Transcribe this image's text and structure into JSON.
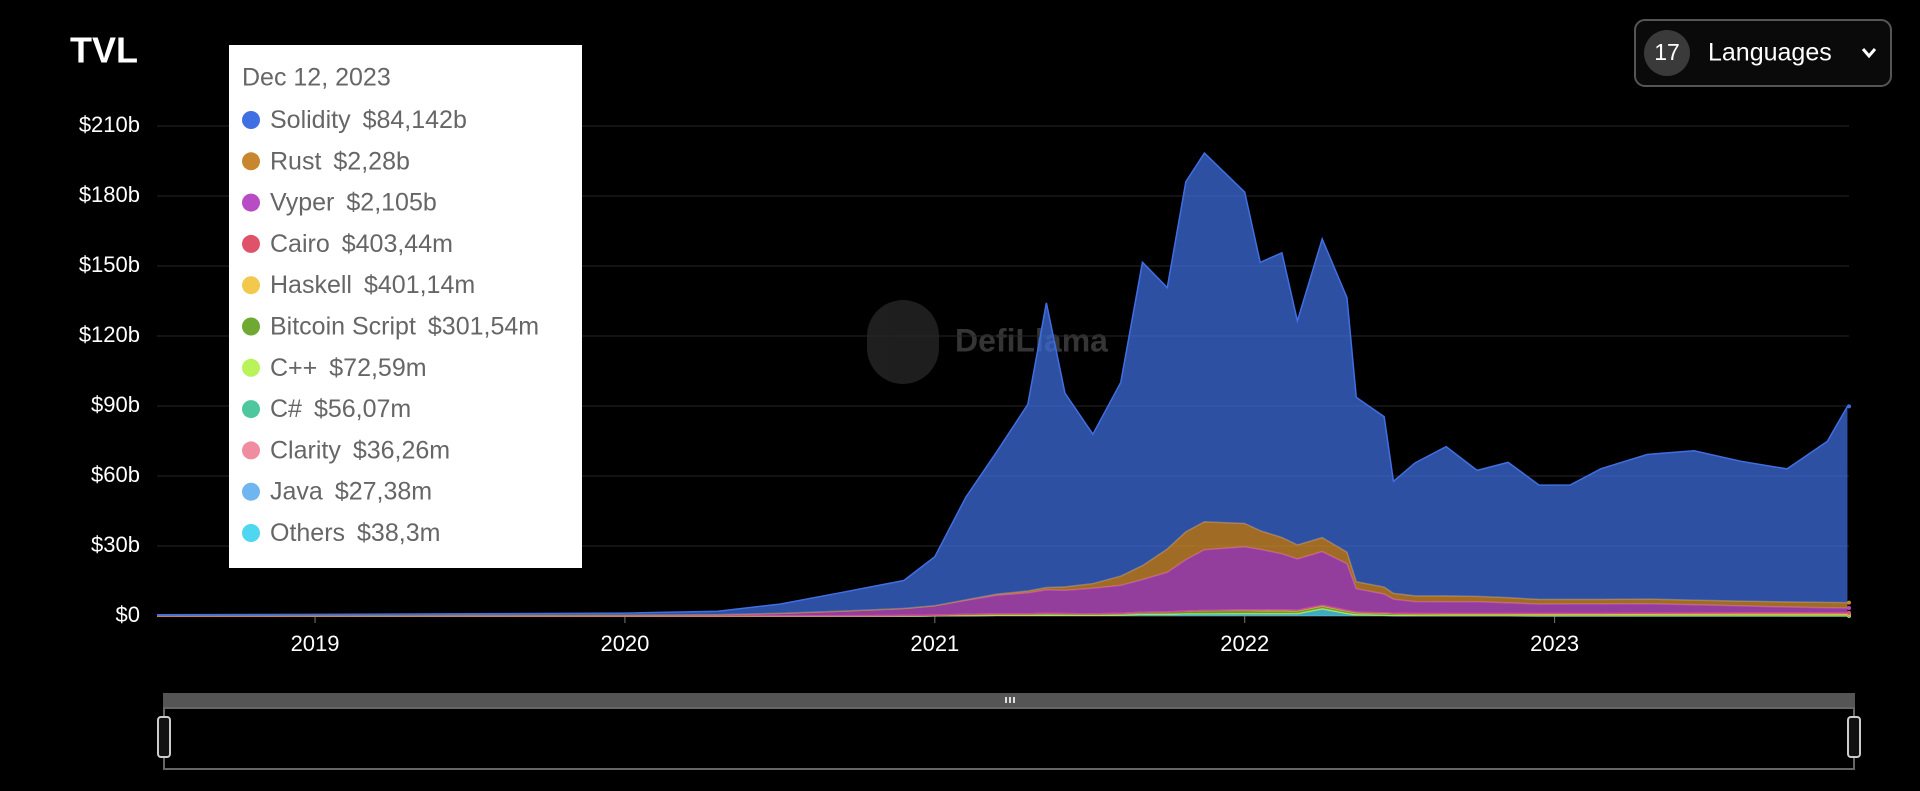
{
  "chart_data": {
    "type": "stacked-area",
    "title": "TVL",
    "x": [
      2018.49,
      2019.0,
      2019.5,
      2020.0,
      2020.3,
      2020.5,
      2020.7,
      2020.9,
      2021.0,
      2021.1,
      2021.2,
      2021.3,
      2021.36,
      2021.42,
      2021.51,
      2021.6,
      2021.67,
      2021.75,
      2021.81,
      2021.87,
      2022.0,
      2022.05,
      2022.12,
      2022.17,
      2022.25,
      2022.33,
      2022.36,
      2022.45,
      2022.48,
      2022.55,
      2022.65,
      2022.75,
      2022.85,
      2022.95,
      2023.05,
      2023.15,
      2023.3,
      2023.45,
      2023.6,
      2023.75,
      2023.88,
      2023.945
    ],
    "xlim": [
      2018.49,
      2023.95
    ],
    "xticks": [
      2019,
      2020,
      2021,
      2022,
      2023
    ],
    "ylim": [
      0,
      210
    ],
    "yticks": [
      {
        "value": 0,
        "label": "$0"
      },
      {
        "value": 30,
        "label": "$30b"
      },
      {
        "value": 60,
        "label": "$60b"
      },
      {
        "value": 90,
        "label": "$90b"
      },
      {
        "value": 120,
        "label": "$120b"
      },
      {
        "value": 150,
        "label": "$150b"
      },
      {
        "value": 180,
        "label": "$180b"
      },
      {
        "value": 210,
        "label": "$210b"
      }
    ],
    "grid": true,
    "series": [
      {
        "name": "Solidity",
        "color": "#3f6fe2",
        "values": [
          0.5,
          0.6,
          0.7,
          0.9,
          1.5,
          4,
          8,
          12,
          21,
          44,
          61,
          80,
          122,
          83,
          64,
          83,
          130,
          112,
          150,
          158,
          142,
          115,
          122,
          96,
          128,
          109,
          79,
          73,
          48,
          57,
          64,
          54,
          58,
          49,
          49,
          56,
          62,
          64,
          60,
          57,
          69,
          84.142
        ]
      },
      {
        "name": "Rust",
        "color": "#c8872e",
        "values": [
          0,
          0,
          0,
          0,
          0,
          0,
          0,
          0,
          0,
          0.2,
          0.5,
          0.8,
          1,
          1.5,
          2,
          4,
          6,
          10,
          12,
          12,
          10,
          8,
          7,
          6,
          6,
          5,
          3,
          3,
          2.5,
          2.5,
          2.5,
          2.3,
          2.2,
          2,
          2,
          2,
          2,
          2,
          2,
          2.2,
          2.3,
          2.28
        ]
      },
      {
        "name": "Vyper",
        "color": "#b84cc4",
        "values": [
          0,
          0.1,
          0.2,
          0.3,
          0.5,
          1,
          2,
          3,
          4,
          6,
          8,
          9,
          10,
          10,
          11,
          12,
          14,
          17,
          22,
          26,
          27,
          26,
          24,
          22,
          23,
          20,
          10,
          8,
          6,
          5,
          5,
          5,
          4.5,
          4,
          4,
          4,
          4,
          3.5,
          3,
          2.5,
          2.2,
          2.105
        ]
      },
      {
        "name": "Cairo",
        "color": "#e0526a",
        "values": [
          0,
          0,
          0,
          0,
          0,
          0,
          0,
          0,
          0,
          0,
          0,
          0,
          0,
          0,
          0,
          0,
          0,
          0,
          0,
          0,
          0,
          0,
          0,
          0,
          0,
          0,
          0.1,
          0.1,
          0.1,
          0.15,
          0.2,
          0.2,
          0.25,
          0.3,
          0.3,
          0.3,
          0.35,
          0.4,
          0.4,
          0.4,
          0.4,
          0.40344
        ]
      },
      {
        "name": "Haskell",
        "color": "#f2c94c",
        "values": [
          0,
          0,
          0,
          0,
          0,
          0,
          0,
          0,
          0,
          0,
          0,
          0,
          0,
          0,
          0,
          0,
          0,
          0,
          0.1,
          0.3,
          0.5,
          0.5,
          0.6,
          0.5,
          0.6,
          0.5,
          0.4,
          0.3,
          0.3,
          0.3,
          0.3,
          0.3,
          0.3,
          0.25,
          0.3,
          0.3,
          0.35,
          0.35,
          0.4,
          0.4,
          0.4,
          0.40114
        ]
      },
      {
        "name": "Bitcoin Script",
        "color": "#6fa832",
        "values": [
          0.01,
          0.02,
          0.05,
          0.05,
          0.05,
          0.1,
          0.1,
          0.2,
          0.3,
          0.5,
          0.6,
          0.6,
          0.7,
          0.6,
          0.5,
          0.6,
          0.8,
          0.9,
          1,
          1.1,
          1,
          0.9,
          0.9,
          0.8,
          0.8,
          0.7,
          0.5,
          0.5,
          0.4,
          0.4,
          0.3,
          0.3,
          0.3,
          0.3,
          0.3,
          0.3,
          0.3,
          0.3,
          0.3,
          0.3,
          0.3,
          0.30154
        ]
      },
      {
        "name": "C++",
        "color": "#b8f35a",
        "values": [
          0,
          0,
          0,
          0,
          0,
          0,
          0,
          0,
          0,
          0,
          0,
          0,
          0,
          0,
          0,
          0,
          0,
          0,
          0,
          0,
          0.1,
          0.1,
          0.1,
          0.1,
          0.1,
          0.1,
          0.1,
          0.1,
          0.1,
          0.1,
          0.1,
          0.1,
          0.1,
          0.1,
          0.1,
          0.1,
          0.1,
          0.1,
          0.1,
          0.1,
          0.1,
          0.07259
        ]
      },
      {
        "name": "C#",
        "color": "#4fc79e",
        "values": [
          0,
          0,
          0,
          0,
          0,
          0,
          0,
          0,
          0,
          0,
          0,
          0,
          0,
          0,
          0,
          0,
          0,
          0,
          0,
          0,
          0.05,
          0.05,
          0.05,
          0.05,
          0.05,
          0.05,
          0.05,
          0.05,
          0.05,
          0.05,
          0.05,
          0.05,
          0.05,
          0.05,
          0.05,
          0.05,
          0.05,
          0.05,
          0.05,
          0.05,
          0.05,
          0.05607
        ]
      },
      {
        "name": "Clarity",
        "color": "#f08ca0",
        "values": [
          0,
          0,
          0,
          0,
          0,
          0,
          0,
          0,
          0,
          0,
          0,
          0,
          0,
          0,
          0,
          0,
          0,
          0,
          0,
          0,
          0,
          0,
          0,
          0,
          0.03,
          0.03,
          0.03,
          0.03,
          0.03,
          0.03,
          0.03,
          0.03,
          0.03,
          0.03,
          0.03,
          0.03,
          0.03,
          0.03,
          0.03,
          0.03,
          0.03,
          0.03626
        ]
      },
      {
        "name": "Java",
        "color": "#6fb5f0",
        "values": [
          0,
          0,
          0,
          0,
          0,
          0,
          0,
          0,
          0,
          0,
          0,
          0,
          0,
          0,
          0,
          0,
          0,
          0,
          0,
          0,
          0,
          0,
          0,
          0,
          0.02,
          0.02,
          0.02,
          0.02,
          0.02,
          0.02,
          0.02,
          0.02,
          0.02,
          0.02,
          0.02,
          0.02,
          0.02,
          0.02,
          0.02,
          0.02,
          0.02,
          0.02738
        ]
      },
      {
        "name": "Others",
        "color": "#4fd6f0",
        "values": [
          0,
          0,
          0,
          0,
          0,
          0,
          0,
          0,
          0.1,
          0.2,
          0.3,
          0.3,
          0.5,
          0.4,
          0.4,
          0.5,
          0.8,
          0.8,
          1,
          1,
          1,
          1,
          1,
          1,
          3,
          1,
          0.5,
          0.3,
          0.2,
          0.1,
          0.1,
          0.1,
          0.1,
          0.05,
          0.05,
          0.05,
          0.05,
          0.05,
          0.05,
          0.04,
          0.04,
          0.0383
        ]
      }
    ],
    "tooltip": {
      "date": "Dec 12, 2023",
      "values": [
        84.142,
        2.28,
        2.105,
        0.40344,
        0.40114,
        0.30154,
        0.07259,
        0.05607,
        0.03626,
        0.02738,
        0.0383
      ],
      "value_labels": [
        "$84,142b",
        "$2,28b",
        "$2,105b",
        "$403,44m",
        "$401,14m",
        "$301,54m",
        "$72,59m",
        "$56,07m",
        "$36,26m",
        "$27,38m",
        "$38,3m"
      ]
    },
    "watermark": "DefiLlama",
    "control": {
      "count": "17",
      "label": "Languages"
    }
  }
}
